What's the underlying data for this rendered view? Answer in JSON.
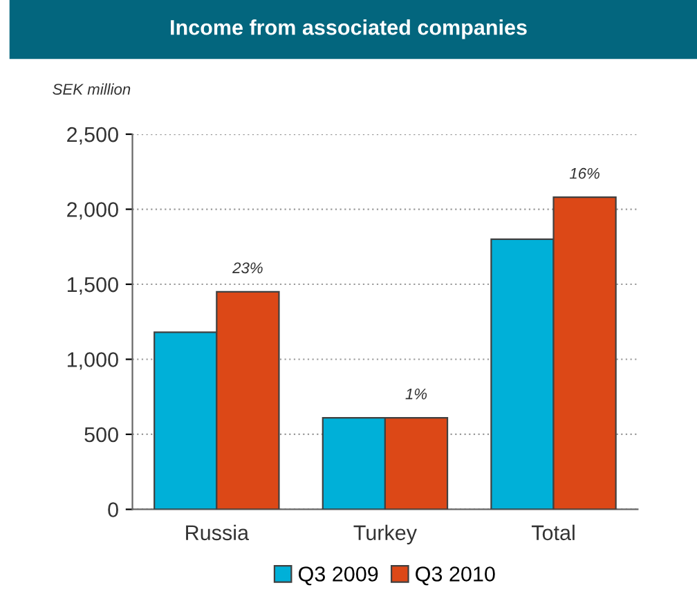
{
  "chart_data": {
    "type": "bar",
    "title": "Income from associated companies",
    "ylabel": "SEK million",
    "categories": [
      "Russia",
      "Turkey",
      "Total"
    ],
    "series": [
      {
        "name": "Q3 2009",
        "color": "#00b0d8",
        "values": [
          1180,
          610,
          1800
        ]
      },
      {
        "name": "Q3 2010",
        "color": "#dc4817",
        "values": [
          1450,
          610,
          2080
        ]
      }
    ],
    "annotations": [
      {
        "text": "23%",
        "x": "Russia",
        "y": 1450
      },
      {
        "text": "1%",
        "x": "Turkey",
        "y": 610
      },
      {
        "text": "16%",
        "x": "Total",
        "y": 2080
      }
    ],
    "ylim": [
      0,
      2500
    ],
    "yticks": [
      {
        "value": 0,
        "label": "0"
      },
      {
        "value": 500,
        "label": "500"
      },
      {
        "value": 1000,
        "label": "1,000"
      },
      {
        "value": 1500,
        "label": "1,500"
      },
      {
        "value": 2000,
        "label": "2,000"
      },
      {
        "value": 2500,
        "label": "2,500"
      }
    ],
    "grid": "y",
    "legend": "bottom"
  }
}
